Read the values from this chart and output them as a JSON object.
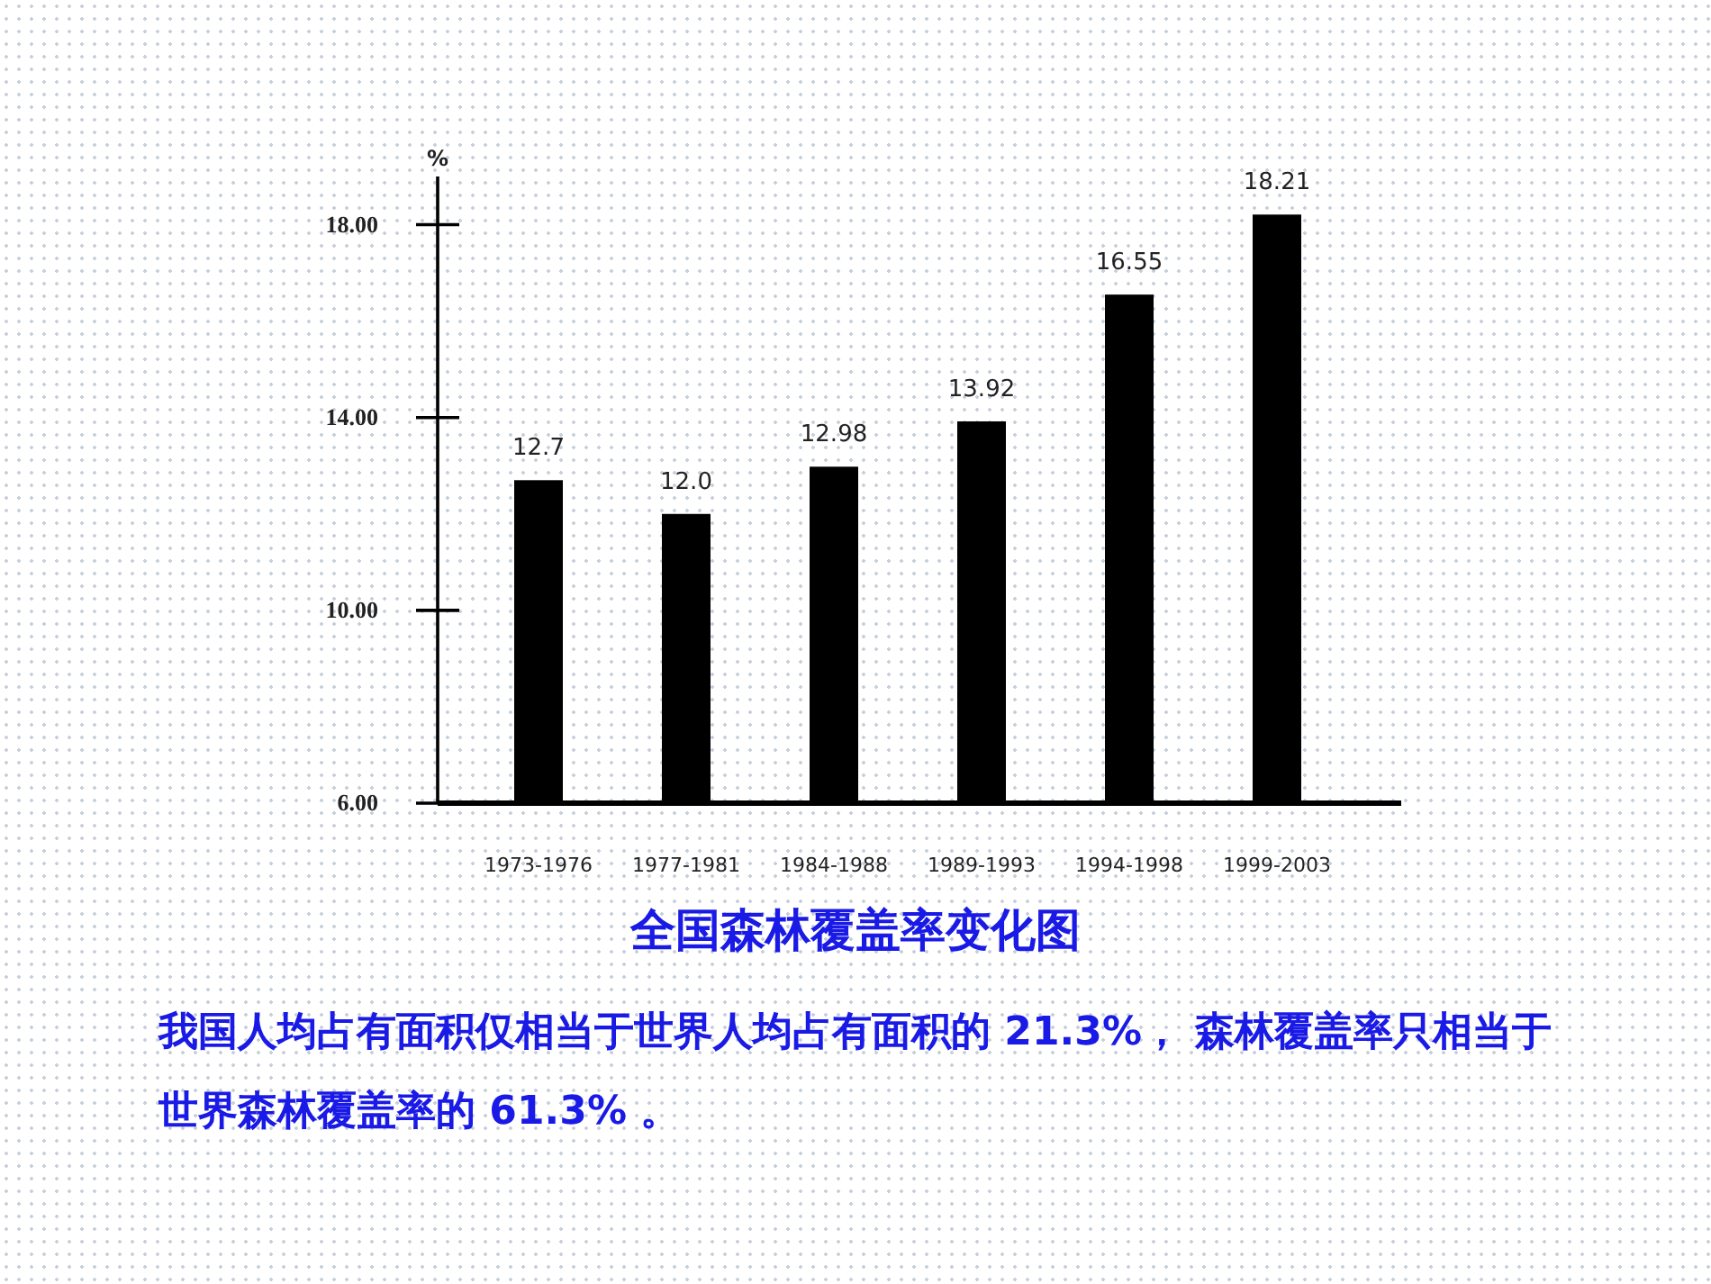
{
  "chart_data": {
    "type": "bar",
    "title": "全国森林覆盖率变化图",
    "ylabel": "%",
    "categories": [
      "1973-1976",
      "1977-1981",
      "1984-1988",
      "1989-1993",
      "1994-1998",
      "1999-2003"
    ],
    "values": [
      12.7,
      12.0,
      12.98,
      13.92,
      16.55,
      18.21
    ],
    "value_labels": [
      "12.7",
      "12.0",
      "12.98",
      "13.92",
      "16.55",
      "18.21"
    ],
    "color": "#000000",
    "ylim": [
      6,
      19
    ],
    "yticks": [
      {
        "value": 6,
        "label": "6.00"
      },
      {
        "value": 10,
        "label": "10.00"
      },
      {
        "value": 14,
        "label": "14.00"
      },
      {
        "value": 18,
        "label": "18.00"
      }
    ],
    "grid": false,
    "annotations": [
      "我国人均占有面积仅相当于世界人均占有面积的 21.3%， 森林覆盖率只相当于世界森林覆盖率的 61.3% 。"
    ]
  }
}
